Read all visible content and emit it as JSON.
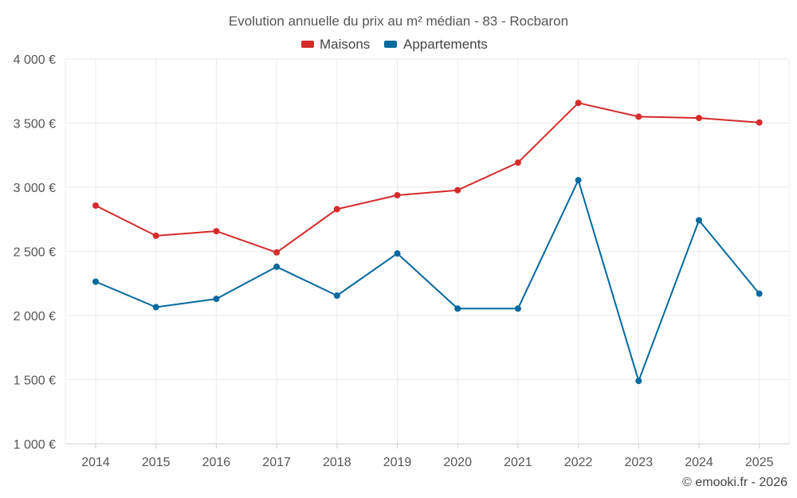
{
  "chart_data": {
    "type": "line",
    "title": "Evolution annuelle du prix au m² médian - 83 - Rocbaron",
    "categories": [
      "2014",
      "2015",
      "2016",
      "2017",
      "2018",
      "2019",
      "2020",
      "2021",
      "2022",
      "2023",
      "2024",
      "2025"
    ],
    "series": [
      {
        "name": "Maisons",
        "color": "#d52b2b",
        "values": [
          2857,
          2622,
          2658,
          2492,
          2829,
          2938,
          2977,
          3192,
          3657,
          3550,
          3540,
          3505
        ]
      },
      {
        "name": "Appartements",
        "color": "#04699e",
        "values": [
          2264,
          2065,
          2130,
          2380,
          2155,
          2484,
          2054,
          2054,
          3055,
          1490,
          2742,
          2170
        ]
      }
    ],
    "y_ticks": [
      "1 000 €",
      "1 500 €",
      "2 000 €",
      "2 500 €",
      "3 000 €",
      "3 500 €",
      "4 000 €"
    ],
    "y_tick_values": [
      1000,
      1500,
      2000,
      2500,
      3000,
      3500,
      4000
    ],
    "ylim": [
      1000,
      4000
    ],
    "xlabel": "",
    "ylabel": "",
    "legend_position": "top-center",
    "grid": true
  },
  "credit": "© emooki.fr - 2026"
}
